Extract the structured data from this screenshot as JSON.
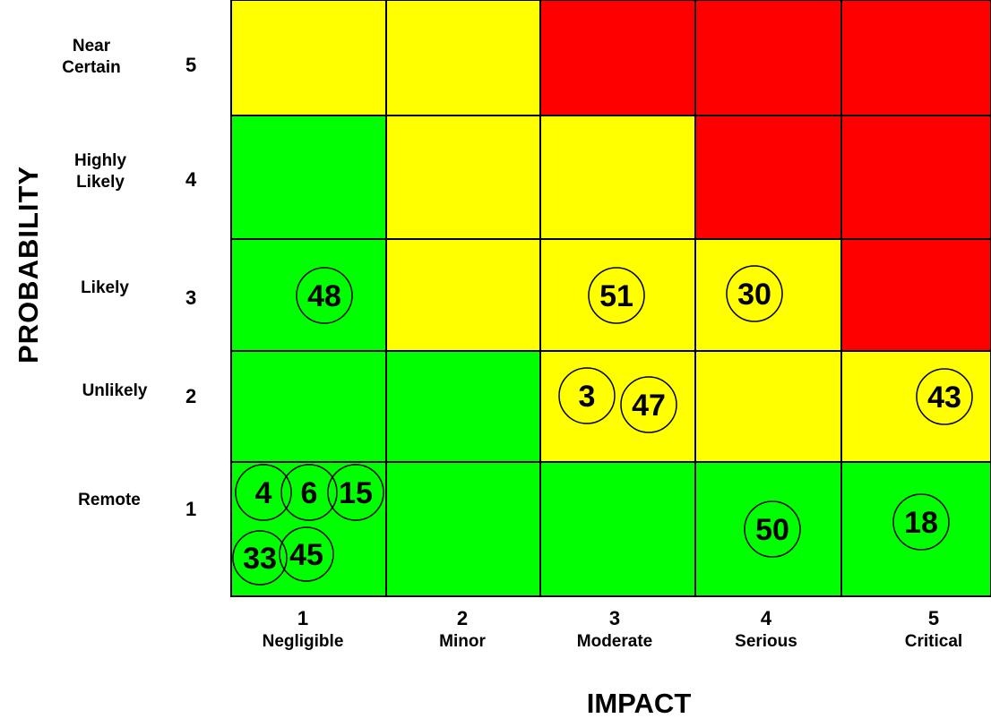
{
  "chart_data": {
    "type": "heatmap",
    "xlabel": "IMPACT",
    "ylabel": "PROBABILITY",
    "columns": [
      {
        "num": "1",
        "name": "Negligible"
      },
      {
        "num": "2",
        "name": "Minor"
      },
      {
        "num": "3",
        "name": "Moderate"
      },
      {
        "num": "4",
        "name": "Serious"
      },
      {
        "num": "5",
        "name": "Critical"
      }
    ],
    "rows": [
      {
        "num": "5",
        "name": "Near Certain"
      },
      {
        "num": "4",
        "name": "Highly Likely"
      },
      {
        "num": "3",
        "name": "Likely"
      },
      {
        "num": "2",
        "name": "Unlikely"
      },
      {
        "num": "1",
        "name": "Remote"
      }
    ],
    "cell_colors": [
      [
        "yellow",
        "yellow",
        "red",
        "red",
        "red"
      ],
      [
        "green",
        "yellow",
        "yellow",
        "red",
        "red"
      ],
      [
        "green",
        "yellow",
        "yellow",
        "yellow",
        "red"
      ],
      [
        "green",
        "green",
        "yellow",
        "yellow",
        "yellow"
      ],
      [
        "green",
        "green",
        "green",
        "green",
        "green"
      ]
    ],
    "colors": {
      "green": "#00ff00",
      "yellow": "#ffff00",
      "red": "#ff0000"
    },
    "risks": [
      {
        "id": "48",
        "impact": 1,
        "probability": 3
      },
      {
        "id": "51",
        "impact": 3,
        "probability": 3
      },
      {
        "id": "30",
        "impact": 4,
        "probability": 3
      },
      {
        "id": "3",
        "impact": 3,
        "probability": 2
      },
      {
        "id": "47",
        "impact": 3,
        "probability": 2
      },
      {
        "id": "43",
        "impact": 5,
        "probability": 2
      },
      {
        "id": "4",
        "impact": 1,
        "probability": 1
      },
      {
        "id": "6",
        "impact": 1,
        "probability": 1
      },
      {
        "id": "15",
        "impact": 1,
        "probability": 1
      },
      {
        "id": "33",
        "impact": 1,
        "probability": 1
      },
      {
        "id": "45",
        "impact": 1,
        "probability": 1
      },
      {
        "id": "50",
        "impact": 4,
        "probability": 1
      },
      {
        "id": "18",
        "impact": 5,
        "probability": 1
      }
    ]
  }
}
